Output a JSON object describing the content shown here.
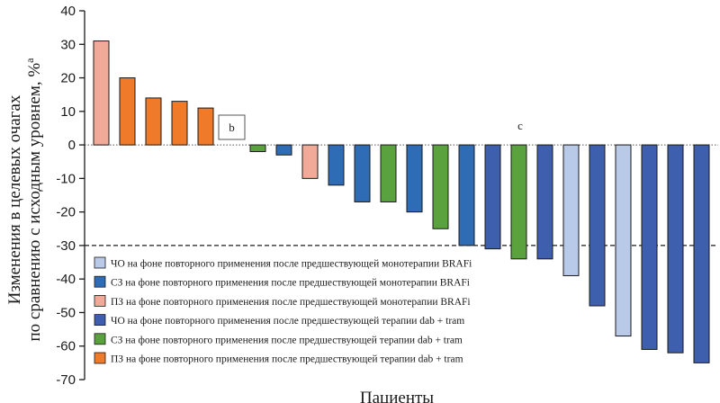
{
  "chart_data": {
    "type": "bar",
    "ylabel_line1": "Изменения в целевых очагах",
    "ylabel_line2": "по сравнению с исходным уровнем, %",
    "ylabel_sup": "a",
    "xlabel": "Пациенты",
    "ylim": [
      -70,
      40
    ],
    "yticks": [
      40,
      30,
      20,
      10,
      0,
      -10,
      -20,
      -30,
      -40,
      -50,
      -60,
      -70
    ],
    "threshold": -30,
    "annotations": [
      {
        "text": "b",
        "boxed": true
      },
      {
        "text": "c",
        "boxed": false
      }
    ],
    "categories": {
      "cr_braf": {
        "label": "ЧО на фоне повторного применения после предшествующей монотерапии BRAFi",
        "color": "#b9c9e8"
      },
      "sd_braf": {
        "label": "СЗ на фоне повторного применения после предшествующей монотерапии BRAFi",
        "color": "#2e6cb5"
      },
      "pd_braf": {
        "label": "ПЗ на фоне повторного применения после предшествующей монотерапии BRAFi",
        "color": "#f2aa98"
      },
      "cr_dt": {
        "label": "ЧО на фоне повторного применения после предшествующей терапии dab + tram",
        "color": "#3e5eae"
      },
      "sd_dt": {
        "label": "СЗ на фоне повторного применения после предшествующей терапии dab + tram",
        "color": "#5aa23e"
      },
      "pd_dt": {
        "label": "ПЗ на фоне повторного применения после предшествующей терапии dab + tram",
        "color": "#ee7a2a"
      }
    },
    "legend_order": [
      "cr_braf",
      "sd_braf",
      "pd_braf",
      "cr_dt",
      "sd_dt",
      "pd_dt"
    ],
    "bars": [
      {
        "value": 31,
        "category": "pd_braf"
      },
      {
        "value": 20,
        "category": "pd_dt"
      },
      {
        "value": 14,
        "category": "pd_dt"
      },
      {
        "value": 13,
        "category": "pd_dt"
      },
      {
        "value": 11,
        "category": "pd_dt"
      },
      {
        "value": 0,
        "category": "sd_braf"
      },
      {
        "value": -2,
        "category": "sd_dt"
      },
      {
        "value": -3,
        "category": "sd_braf"
      },
      {
        "value": -10,
        "category": "pd_braf"
      },
      {
        "value": -12,
        "category": "sd_braf"
      },
      {
        "value": -17,
        "category": "sd_braf"
      },
      {
        "value": -17,
        "category": "sd_dt"
      },
      {
        "value": -20,
        "category": "sd_braf"
      },
      {
        "value": -25,
        "category": "sd_dt"
      },
      {
        "value": -30,
        "category": "sd_braf"
      },
      {
        "value": -31,
        "category": "cr_dt"
      },
      {
        "value": -34,
        "category": "sd_dt"
      },
      {
        "value": -34,
        "category": "cr_dt"
      },
      {
        "value": -39,
        "category": "cr_braf"
      },
      {
        "value": -48,
        "category": "cr_dt"
      },
      {
        "value": -57,
        "category": "cr_braf"
      },
      {
        "value": -61,
        "category": "cr_dt"
      },
      {
        "value": -62,
        "category": "cr_dt"
      },
      {
        "value": -65,
        "category": "cr_dt"
      }
    ]
  }
}
